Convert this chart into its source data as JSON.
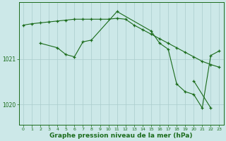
{
  "background_color": "#cce8e8",
  "plot_bg_color": "#cce8e8",
  "line_color": "#1a6b1a",
  "grid_color": "#aacccc",
  "xlabel": "Graphe pression niveau de la mer (hPa)",
  "xlabel_fontsize": 6.5,
  "xlabel_bold": true,
  "xtick_labels": [
    "0",
    "1",
    "2",
    "3",
    "4",
    "5",
    "6",
    "7",
    "8",
    "9",
    "10",
    "11",
    "12",
    "13",
    "14",
    "15",
    "16",
    "17",
    "18",
    "19",
    "20",
    "21",
    "22",
    "23"
  ],
  "ytick_labels": [
    "1020",
    "1021"
  ],
  "ylim": [
    1019.55,
    1022.25
  ],
  "xlim": [
    -0.5,
    23.5
  ],
  "series1_x": [
    0,
    1,
    2,
    3,
    4,
    5,
    6,
    7,
    8,
    9,
    10,
    11,
    12,
    13,
    14,
    15,
    16,
    17,
    18,
    19,
    20,
    21,
    22,
    23
  ],
  "series1_y": [
    1021.75,
    1021.78,
    1021.8,
    1021.82,
    1021.84,
    1021.86,
    1021.88,
    1021.88,
    1021.88,
    1021.88,
    1021.88,
    1021.9,
    1021.88,
    1021.75,
    1021.65,
    1021.55,
    1021.45,
    1021.35,
    1021.25,
    1021.15,
    1021.05,
    1020.95,
    1020.88,
    1020.82
  ],
  "series2_x": [
    2,
    4,
    5,
    6,
    7,
    8,
    11,
    15,
    16,
    17,
    18,
    19,
    20,
    21,
    22,
    23
  ],
  "series2_y": [
    1021.35,
    1021.25,
    1021.1,
    1021.05,
    1021.38,
    1021.42,
    1022.05,
    1021.62,
    1021.35,
    1021.22,
    1020.45,
    1020.28,
    1020.22,
    1019.92,
    1021.08,
    1021.18
  ],
  "series3_x": [
    20,
    22
  ],
  "series3_y": [
    1020.52,
    1019.92
  ]
}
